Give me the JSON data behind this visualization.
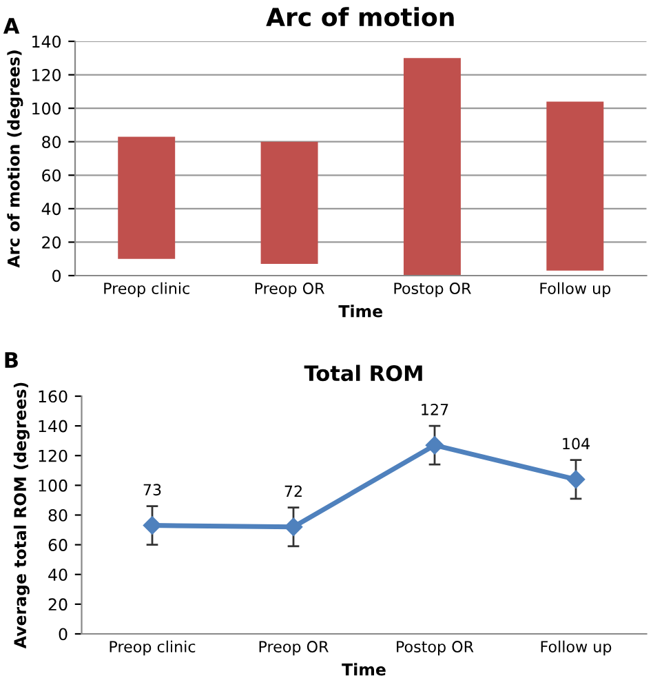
{
  "chart_data": [
    {
      "type": "bar",
      "title": "Arc of motion",
      "xlabel": "Time",
      "ylabel": "Arc of motion (degrees)",
      "annotations": [
        "A"
      ],
      "categories": [
        "Preop clinic",
        "Preop OR",
        "Postop OR",
        "Follow up"
      ],
      "base": [
        10,
        7,
        0,
        3
      ],
      "values": [
        73,
        73,
        130,
        101
      ],
      "color": "#c0504d",
      "ylim": [
        0,
        140
      ],
      "yticks": [
        0,
        20,
        40,
        60,
        80,
        100,
        120,
        140
      ],
      "grid": "y",
      "legend": false
    },
    {
      "type": "line",
      "title": "Total ROM",
      "xlabel": "Time",
      "ylabel": "Average total ROM (degrees)",
      "annotations": [
        "B"
      ],
      "categories": [
        "Preop clinic",
        "Preop OR",
        "Postop OR",
        "Follow up"
      ],
      "values": [
        73,
        72,
        127,
        104
      ],
      "errors": [
        13,
        13,
        13,
        13
      ],
      "color": "#4f81bd",
      "marker": "diamond",
      "data_labels": true,
      "ylim": [
        0,
        160
      ],
      "yticks": [
        0,
        20,
        40,
        60,
        80,
        100,
        120,
        140,
        160
      ],
      "grid": false,
      "legend": false
    }
  ]
}
